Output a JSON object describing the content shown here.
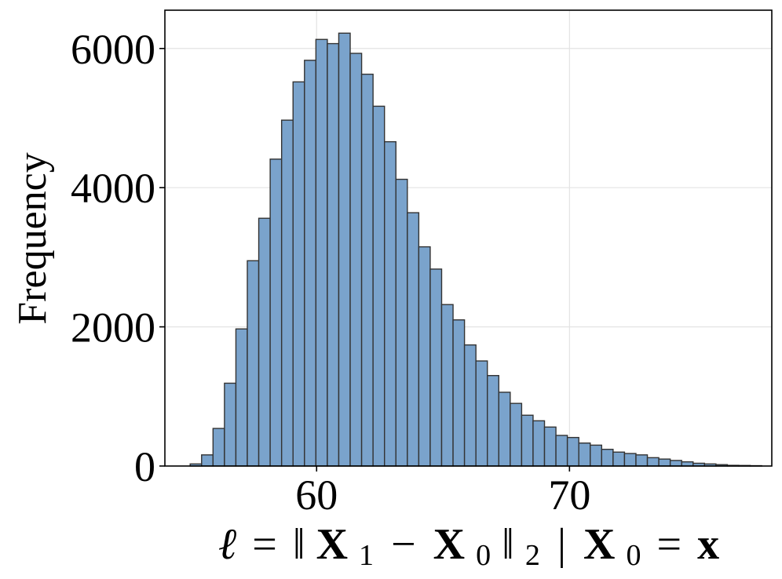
{
  "chart_data": {
    "type": "bar",
    "title": "",
    "ylabel": "Frequency",
    "xlabel": {
      "ell": "ℓ",
      "eq1": "=",
      "bars1": "‖",
      "x1": "X",
      "sub1": "1",
      "minus": "−",
      "x0a": "X",
      "sub0a": "0",
      "bars2": "‖",
      "sub2": "2",
      "given": "|",
      "x0b": "X",
      "sub0b": "0",
      "eq2": "=",
      "xvec": "x"
    },
    "xlim": [
      54.0,
      78.0
    ],
    "ylim": [
      0,
      6550
    ],
    "xticks": [
      60,
      70
    ],
    "yticks": [
      0,
      2000,
      4000,
      6000
    ],
    "grid": true,
    "bar_color": "#7aa3cc",
    "edge_color": "#333333",
    "bin_start": 55.0,
    "bin_width": 0.452,
    "values": [
      30,
      160,
      540,
      1190,
      1970,
      2950,
      3560,
      4410,
      4970,
      5520,
      5830,
      6130,
      6070,
      6220,
      5930,
      5630,
      5170,
      4660,
      4120,
      3640,
      3150,
      2830,
      2320,
      2100,
      1740,
      1510,
      1300,
      1060,
      900,
      730,
      650,
      560,
      440,
      410,
      330,
      300,
      240,
      200,
      180,
      160,
      120,
      100,
      80,
      60,
      40,
      30,
      20,
      10,
      8,
      5
    ]
  }
}
